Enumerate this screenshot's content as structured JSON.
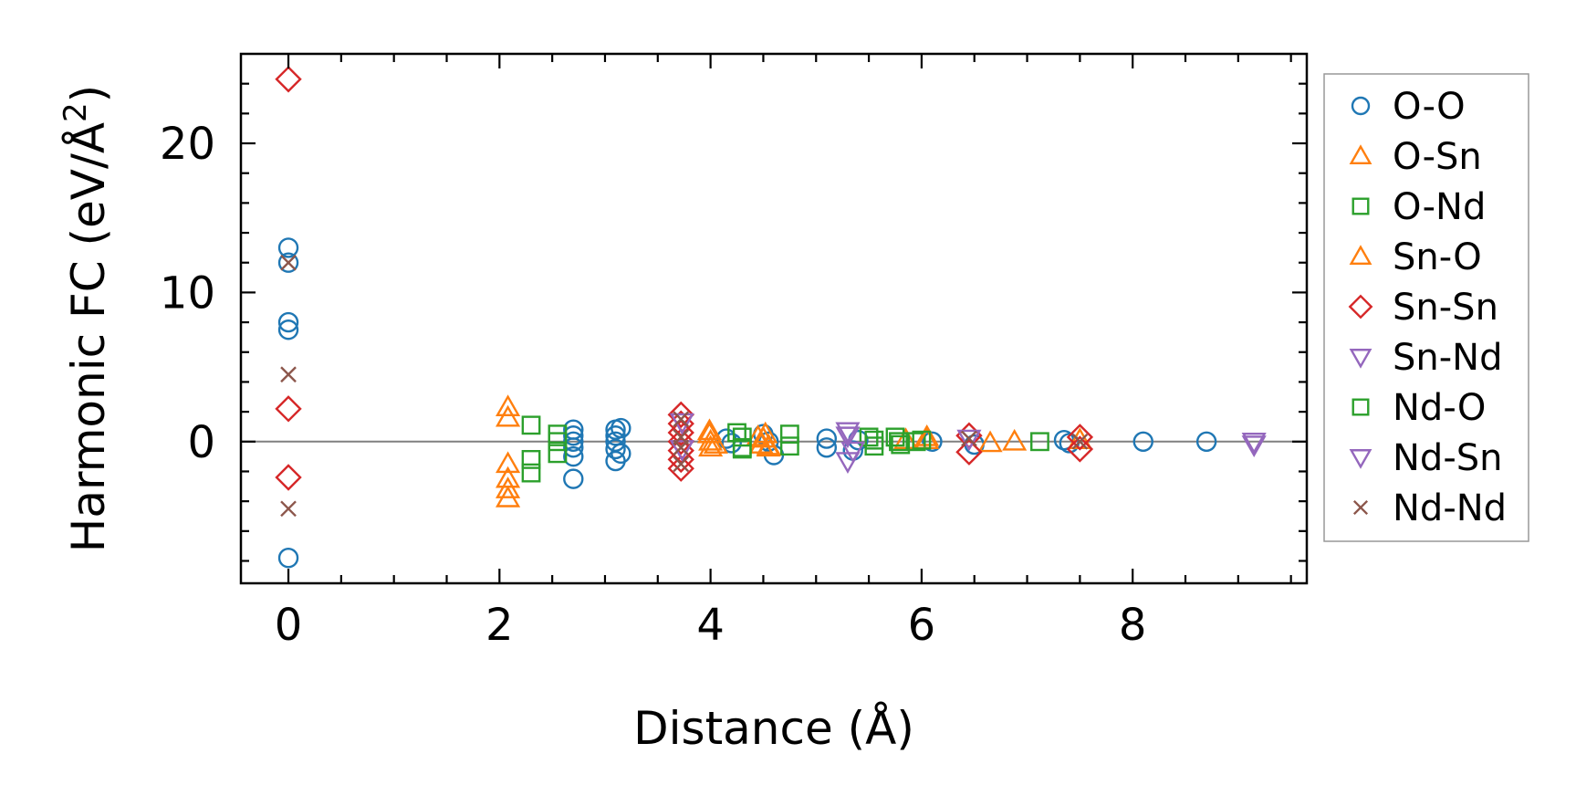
{
  "chart_data": {
    "type": "scatter",
    "xlabel": "Distance (Å)",
    "ylabel_main": "Harmonic FC (eV/Å",
    "ylabel_sup": "2",
    "ylabel_close": ")",
    "xlim": [
      -0.45,
      9.65
    ],
    "ylim": [
      -9.5,
      26
    ],
    "xticks": [
      0,
      2,
      4,
      6,
      8
    ],
    "xtick_labels": [
      "0",
      "2",
      "4",
      "6",
      "8"
    ],
    "yticks": [
      0,
      10,
      20
    ],
    "ytick_labels": [
      "0",
      "10",
      "20"
    ],
    "zero_line": true,
    "grid": false,
    "legend_position": "right",
    "series": [
      {
        "name": "O-O",
        "marker": "circle",
        "color": "#1f77b4",
        "filled": false,
        "points": [
          [
            0,
            13
          ],
          [
            0,
            12
          ],
          [
            0,
            8
          ],
          [
            0,
            7.5
          ],
          [
            0,
            -7.8
          ],
          [
            2.7,
            0.8
          ],
          [
            2.7,
            0.4
          ],
          [
            2.7,
            0
          ],
          [
            2.7,
            -0.4
          ],
          [
            2.7,
            -1
          ],
          [
            2.7,
            -2.5
          ],
          [
            3.1,
            0.8
          ],
          [
            3.1,
            0.4
          ],
          [
            3.1,
            0
          ],
          [
            3.1,
            -0.5
          ],
          [
            3.1,
            -1.3
          ],
          [
            3.15,
            0.9
          ],
          [
            3.15,
            -0.8
          ],
          [
            4.15,
            0.2
          ],
          [
            4.2,
            -0.1
          ],
          [
            4.5,
            0.5
          ],
          [
            4.55,
            0
          ],
          [
            4.6,
            -0.9
          ],
          [
            5.1,
            0.2
          ],
          [
            5.1,
            -0.4
          ],
          [
            5.35,
            -0.6
          ],
          [
            5.4,
            0.1
          ],
          [
            6.1,
            0
          ],
          [
            6.5,
            -0.2
          ],
          [
            7.35,
            0.1
          ],
          [
            7.4,
            -0.1
          ],
          [
            8.1,
            0
          ],
          [
            8.7,
            0
          ]
        ]
      },
      {
        "name": "O-Sn",
        "marker": "triangle-up",
        "color": "#ff7f0e",
        "filled": false,
        "points": [
          [
            2.08,
            2.3
          ],
          [
            2.08,
            1.6
          ],
          [
            2.08,
            -1.5
          ],
          [
            2.08,
            -2.5
          ],
          [
            2.08,
            -3.2
          ],
          [
            2.08,
            -3.8
          ],
          [
            3.99,
            0.7
          ],
          [
            4.0,
            0
          ],
          [
            4.0,
            -0.4
          ],
          [
            4.45,
            0.3
          ],
          [
            4.48,
            -0.2
          ],
          [
            4.52,
            0.5
          ],
          [
            4.55,
            -0.4
          ],
          [
            5.85,
            0.1
          ],
          [
            6.05,
            0.3
          ],
          [
            6.65,
            -0.1
          ],
          [
            6.88,
            0
          ],
          [
            7.5,
            0.1
          ]
        ]
      },
      {
        "name": "O-Nd",
        "marker": "square",
        "color": "#2ca02c",
        "filled": false,
        "points": [
          [
            2.3,
            1.1
          ],
          [
            2.3,
            -1.2
          ],
          [
            2.3,
            -2.1
          ],
          [
            2.55,
            0.5
          ],
          [
            2.55,
            0
          ],
          [
            2.55,
            -0.8
          ],
          [
            4.25,
            0.6
          ],
          [
            4.3,
            -0.4
          ],
          [
            4.75,
            0.5
          ],
          [
            4.75,
            -0.3
          ],
          [
            5.5,
            0.3
          ],
          [
            5.55,
            -0.3
          ],
          [
            5.75,
            0.3
          ],
          [
            5.78,
            0
          ],
          [
            5.95,
            0
          ],
          [
            7.12,
            0
          ]
        ]
      },
      {
        "name": "Sn-O",
        "marker": "triangle-up",
        "color": "#ff7f0e",
        "filled": false,
        "points": [
          [
            3.99,
            0.5
          ],
          [
            4.05,
            -0.2
          ],
          [
            4.5,
            0.2
          ],
          [
            4.55,
            -0.3
          ],
          [
            6.05,
            0.1
          ]
        ]
      },
      {
        "name": "Sn-Sn",
        "marker": "diamond",
        "color": "#d62728",
        "filled": false,
        "points": [
          [
            0,
            24.3
          ],
          [
            0,
            2.2
          ],
          [
            0,
            -2.4
          ],
          [
            3.72,
            1.8
          ],
          [
            3.72,
            1.2
          ],
          [
            3.72,
            0.6
          ],
          [
            3.72,
            0
          ],
          [
            3.72,
            -0.6
          ],
          [
            3.72,
            -1.2
          ],
          [
            3.72,
            -1.8
          ],
          [
            6.45,
            0.4
          ],
          [
            6.45,
            -0.7
          ],
          [
            7.5,
            0.3
          ],
          [
            7.5,
            -0.5
          ]
        ]
      },
      {
        "name": "Sn-Nd",
        "marker": "triangle-down",
        "color": "#9467bd",
        "filled": false,
        "points": [
          [
            3.73,
            1.3
          ],
          [
            3.73,
            -0.5
          ],
          [
            5.3,
            0.7
          ],
          [
            5.3,
            -1.3
          ],
          [
            6.45,
            0.2
          ],
          [
            9.15,
            0
          ]
        ]
      },
      {
        "name": "Nd-O",
        "marker": "square",
        "color": "#2ca02c",
        "filled": false,
        "points": [
          [
            4.3,
            0.3
          ],
          [
            4.3,
            -0.5
          ],
          [
            5.55,
            0.1
          ],
          [
            5.8,
            -0.2
          ],
          [
            6.0,
            0.1
          ]
        ]
      },
      {
        "name": "Nd-Sn",
        "marker": "triangle-down",
        "color": "#9467bd",
        "filled": false,
        "points": [
          [
            5.3,
            0.4
          ],
          [
            5.35,
            -0.6
          ],
          [
            9.15,
            -0.2
          ]
        ]
      },
      {
        "name": "Nd-Nd",
        "marker": "x",
        "color": "#8c564b",
        "filled": false,
        "points": [
          [
            0,
            12
          ],
          [
            0,
            4.5
          ],
          [
            0,
            -4.5
          ],
          [
            3.72,
            1.5
          ],
          [
            3.72,
            0.3
          ],
          [
            3.72,
            -0.4
          ],
          [
            3.72,
            -1.5
          ],
          [
            6.45,
            0.2
          ],
          [
            7.5,
            0
          ]
        ]
      }
    ]
  }
}
